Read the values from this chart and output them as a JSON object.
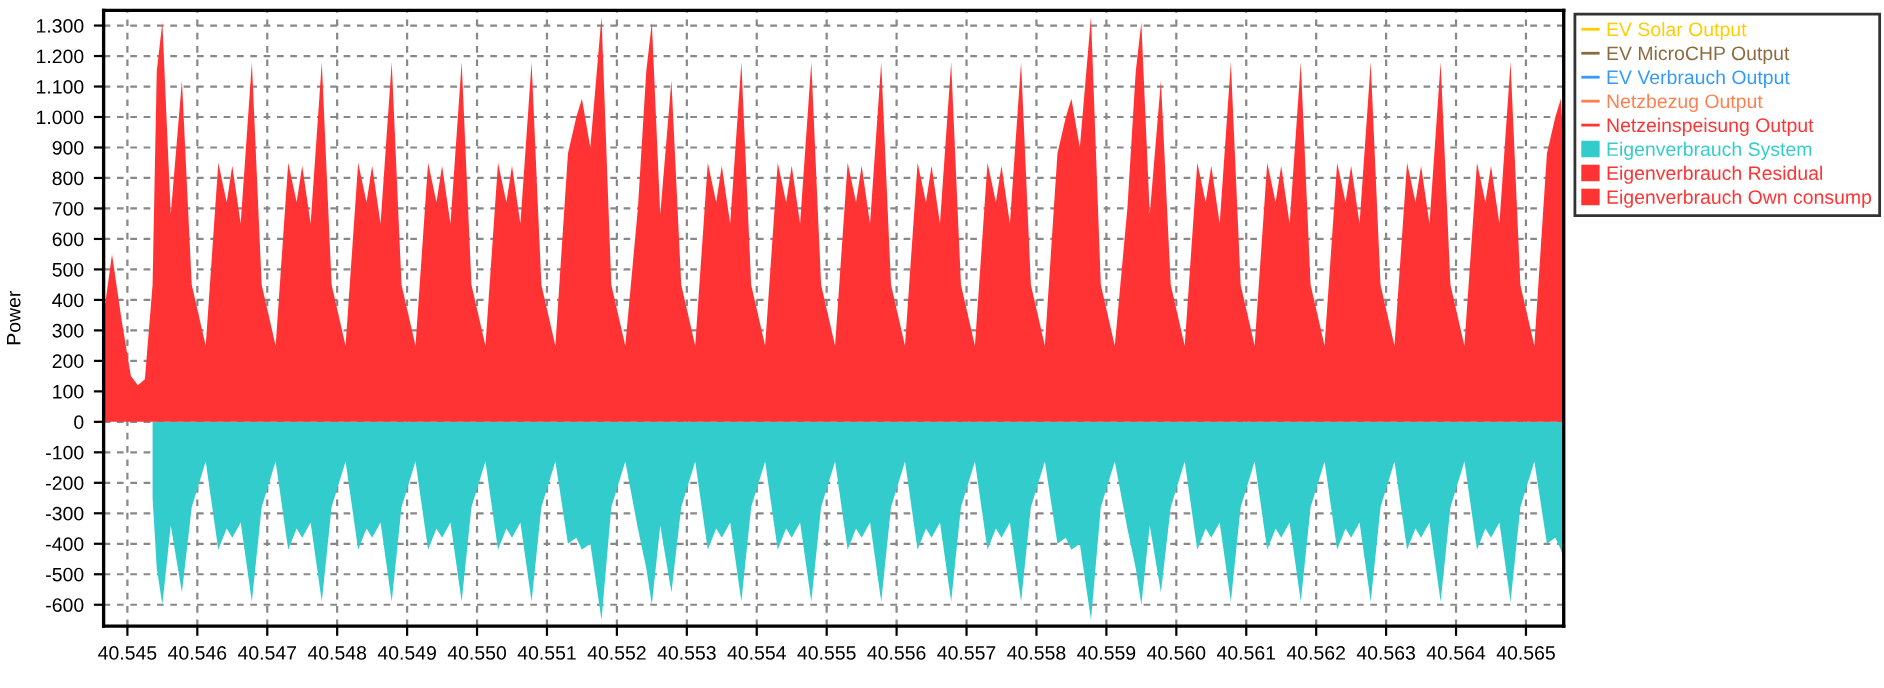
{
  "chart_data": {
    "type": "area",
    "ylabel": "Power",
    "x": [
      40544.66,
      40544.78,
      40544.92,
      40545.05,
      40545.15,
      40545.25,
      40545.36,
      40545.42,
      40545.5,
      40545.62,
      40545.78,
      40545.92,
      40546.12,
      40546.3,
      40546.42,
      40546.5,
      40546.62,
      40546.78,
      40546.92,
      40547.12,
      40547.3,
      40547.42,
      40547.5,
      40547.62,
      40547.78,
      40547.92,
      40548.12,
      40548.3,
      40548.42,
      40548.5,
      40548.62,
      40548.78,
      40548.92,
      40549.12,
      40549.3,
      40549.42,
      40549.5,
      40549.62,
      40549.78,
      40549.92,
      40550.12,
      40550.3,
      40550.42,
      40550.5,
      40550.62,
      40550.78,
      40550.92,
      40551.12,
      40551.3,
      40551.42,
      40551.5,
      40551.62,
      40551.78,
      40551.92,
      40552.12,
      40552.3,
      40552.42,
      40552.5,
      40552.62,
      40552.78,
      40552.92,
      40553.12,
      40553.3,
      40553.42,
      40553.5,
      40553.62,
      40553.78,
      40553.92,
      40554.12,
      40554.3,
      40554.42,
      40554.5,
      40554.62,
      40554.78,
      40554.92,
      40555.12,
      40555.3,
      40555.42,
      40555.5,
      40555.62,
      40555.78,
      40555.92,
      40556.12,
      40556.3,
      40556.42,
      40556.5,
      40556.62,
      40556.78,
      40556.92,
      40557.12,
      40557.3,
      40557.42,
      40557.5,
      40557.62,
      40557.78,
      40557.92,
      40558.12,
      40558.3,
      40558.42,
      40558.5,
      40558.62,
      40558.78,
      40558.92,
      40559.12,
      40559.3,
      40559.42,
      40559.5,
      40559.62,
      40559.78,
      40559.92,
      40560.12,
      40560.3,
      40560.42,
      40560.5,
      40560.62,
      40560.78,
      40560.92,
      40561.12,
      40561.3,
      40561.42,
      40561.5,
      40561.62,
      40561.78,
      40561.92,
      40562.12,
      40562.3,
      40562.42,
      40562.5,
      40562.62,
      40562.78,
      40562.92,
      40563.12,
      40563.3,
      40563.42,
      40563.5,
      40563.62,
      40563.78,
      40563.92,
      40564.12,
      40564.3,
      40564.42,
      40564.5,
      40564.62,
      40564.78,
      40564.92,
      40565.12,
      40565.3,
      40565.42,
      40565.5,
      40565.54
    ],
    "series": [
      {
        "name": "EV Solar Output",
        "type": "line",
        "color": "#ffcc00",
        "values": [
          null,
          null,
          null,
          null,
          null,
          null,
          null,
          null,
          null,
          null,
          null,
          null,
          null,
          null,
          null,
          null,
          null,
          null,
          null,
          null,
          null,
          null,
          null,
          null,
          null,
          null,
          null,
          null,
          null,
          null,
          null,
          null,
          null,
          null,
          null,
          null,
          null,
          null,
          null,
          null,
          null,
          null,
          null,
          null,
          null,
          null,
          null,
          null,
          null,
          null,
          null,
          null,
          null,
          null,
          null,
          null,
          null,
          null,
          null,
          null,
          null,
          null,
          null,
          null,
          null,
          null,
          null,
          null,
          null,
          null,
          null,
          null,
          null,
          null,
          null,
          null,
          null,
          null,
          null,
          null,
          null,
          null,
          null,
          null,
          null,
          null,
          null,
          null,
          null,
          null,
          null,
          null,
          null,
          null,
          null,
          null,
          null,
          null,
          null,
          null,
          null,
          null,
          null,
          null,
          null,
          null,
          null,
          null,
          null,
          null,
          null,
          null,
          null,
          null,
          null,
          null,
          null,
          null,
          null,
          null,
          null,
          null,
          null,
          null,
          null,
          null,
          null,
          null,
          null,
          null,
          null,
          null,
          null,
          null,
          null,
          null,
          null,
          null,
          null,
          null,
          null,
          null,
          null,
          null,
          null,
          null,
          null,
          null,
          null,
          null
        ]
      },
      {
        "name": "EV MicroCHP Output",
        "type": "line",
        "color": "#8b6b3d",
        "values": [
          null,
          null,
          null,
          null,
          null,
          null,
          null,
          null,
          null,
          null,
          null,
          null,
          null,
          null,
          null,
          null,
          null,
          null,
          null,
          null,
          null,
          null,
          null,
          null,
          null,
          null,
          null,
          null,
          null,
          null,
          null,
          null,
          null,
          null,
          null,
          null,
          null,
          null,
          null,
          null,
          null,
          null,
          null,
          null,
          null,
          null,
          null,
          null,
          null,
          null,
          null,
          null,
          null,
          null,
          null,
          null,
          null,
          null,
          null,
          null,
          null,
          null,
          null,
          null,
          null,
          null,
          null,
          null,
          null,
          null,
          null,
          null,
          null,
          null,
          null,
          null,
          null,
          null,
          null,
          null,
          null,
          null,
          null,
          null,
          null,
          null,
          null,
          null,
          null,
          null,
          null,
          null,
          null,
          null,
          null,
          null,
          null,
          null,
          null,
          null,
          null,
          null,
          null,
          null,
          null,
          null,
          null,
          null,
          null,
          null,
          null,
          null,
          null,
          null,
          null,
          null,
          null,
          null,
          null,
          null,
          null,
          null,
          null,
          null,
          null,
          null,
          null,
          null,
          null,
          null,
          null,
          null,
          null,
          null,
          null,
          null,
          null,
          null,
          null,
          null,
          null,
          null,
          null,
          null,
          null,
          null,
          null,
          null,
          null,
          null
        ]
      },
      {
        "name": "EV Verbrauch Output",
        "type": "line",
        "color": "#3399ff",
        "values": [
          null,
          null,
          null,
          null,
          null,
          null,
          null,
          null,
          null,
          null,
          null,
          null,
          null,
          null,
          null,
          null,
          null,
          null,
          null,
          null,
          null,
          null,
          null,
          null,
          null,
          null,
          null,
          null,
          null,
          null,
          null,
          null,
          null,
          null,
          null,
          null,
          null,
          null,
          null,
          null,
          null,
          null,
          null,
          null,
          null,
          null,
          null,
          null,
          null,
          null,
          null,
          null,
          null,
          null,
          null,
          null,
          null,
          null,
          null,
          null,
          null,
          null,
          null,
          null,
          null,
          null,
          null,
          null,
          null,
          null,
          null,
          null,
          null,
          null,
          null,
          null,
          null,
          null,
          null,
          null,
          null,
          null,
          null,
          null,
          null,
          null,
          null,
          null,
          null,
          null,
          null,
          null,
          null,
          null,
          null,
          null,
          null,
          null,
          null,
          null,
          null,
          null,
          null,
          null,
          null,
          null,
          null,
          null,
          null,
          null,
          null,
          null,
          null,
          null,
          null,
          null,
          null,
          null,
          null,
          null,
          null,
          null,
          null,
          null,
          null,
          null,
          null,
          null,
          null,
          null,
          null,
          null,
          null,
          null,
          null,
          null,
          null,
          null,
          null,
          null,
          null,
          null,
          null,
          null,
          null,
          null,
          null,
          null,
          null,
          null
        ]
      },
      {
        "name": "Netzbezug Output",
        "type": "line",
        "color": "#ff7f50",
        "values": [
          null,
          null,
          null,
          null,
          null,
          null,
          null,
          null,
          null,
          null,
          null,
          null,
          null,
          null,
          null,
          null,
          null,
          null,
          null,
          null,
          null,
          null,
          null,
          null,
          null,
          null,
          null,
          null,
          null,
          null,
          null,
          null,
          null,
          null,
          null,
          null,
          null,
          null,
          null,
          null,
          null,
          null,
          null,
          null,
          null,
          null,
          null,
          null,
          null,
          null,
          null,
          null,
          null,
          null,
          null,
          null,
          null,
          null,
          null,
          null,
          null,
          null,
          null,
          null,
          null,
          null,
          null,
          null,
          null,
          null,
          null,
          null,
          null,
          null,
          null,
          null,
          null,
          null,
          null,
          null,
          null,
          null,
          null,
          null,
          null,
          null,
          null,
          null,
          null,
          null,
          null,
          null,
          null,
          null,
          null,
          null,
          null,
          null,
          null,
          null,
          null,
          null,
          null,
          null,
          null,
          null,
          null,
          null,
          null,
          null,
          null,
          null,
          null,
          null,
          null,
          null,
          null,
          null,
          null,
          null,
          null,
          null,
          null,
          null,
          null,
          null,
          null,
          null,
          null,
          null,
          null,
          null,
          null,
          null,
          null,
          null,
          null,
          null,
          null,
          null,
          null,
          null,
          null,
          null,
          null,
          null,
          null,
          null,
          null,
          null
        ]
      },
      {
        "name": "Netzeinspeisung Output",
        "type": "line",
        "color": "#ff3333",
        "values": [
          null,
          null,
          null,
          null,
          null,
          null,
          null,
          null,
          null,
          null,
          null,
          null,
          null,
          null,
          null,
          null,
          null,
          null,
          null,
          null,
          null,
          null,
          null,
          null,
          null,
          null,
          null,
          null,
          null,
          null,
          null,
          null,
          null,
          null,
          null,
          null,
          null,
          null,
          null,
          null,
          null,
          null,
          null,
          null,
          null,
          null,
          null,
          null,
          null,
          null,
          null,
          null,
          null,
          null,
          null,
          null,
          null,
          null,
          null,
          null,
          null,
          null,
          null,
          null,
          null,
          null,
          null,
          null,
          null,
          null,
          null,
          null,
          null,
          null,
          null,
          null,
          null,
          null,
          null,
          null,
          null,
          null,
          null,
          null,
          null,
          null,
          null,
          null,
          null,
          null,
          null,
          null,
          null,
          null,
          null,
          null,
          null,
          null,
          null,
          null,
          null,
          null,
          null,
          null,
          null,
          null,
          null,
          null,
          null,
          null,
          null,
          null,
          null,
          null,
          null,
          null,
          null,
          null,
          null,
          null,
          null,
          null,
          null,
          null,
          null,
          null,
          null,
          null,
          null,
          null,
          null,
          null,
          null,
          null,
          null,
          null,
          null,
          null,
          null,
          null,
          null,
          null,
          null,
          null,
          null,
          null,
          null,
          null,
          null,
          null
        ]
      },
      {
        "name": "Eigenverbrauch System",
        "color": "#33cccc",
        "values": [
          null,
          null,
          null,
          null,
          null,
          null,
          -250,
          -480,
          -600,
          -340,
          -560,
          -280,
          -130,
          -420,
          -350,
          -380,
          -330,
          -590,
          -280,
          -130,
          -420,
          -350,
          -380,
          -330,
          -590,
          -280,
          -130,
          -420,
          -350,
          -380,
          -330,
          -590,
          -280,
          -130,
          -420,
          -350,
          -380,
          -330,
          -590,
          -280,
          -130,
          -420,
          -350,
          -380,
          -330,
          -590,
          -280,
          -130,
          -400,
          -380,
          -420,
          -400,
          -650,
          -280,
          -130,
          -350,
          -480,
          -600,
          -340,
          -560,
          -280,
          -130,
          -420,
          -350,
          -380,
          -330,
          -590,
          -280,
          -130,
          -420,
          -350,
          -380,
          -330,
          -590,
          -280,
          -130,
          -420,
          -350,
          -380,
          -330,
          -590,
          -280,
          -130,
          -420,
          -350,
          -380,
          -330,
          -590,
          -280,
          -130,
          -420,
          -350,
          -380,
          -330,
          -590,
          -280,
          -130,
          -400,
          -380,
          -420,
          -400,
          -650,
          -280,
          -130,
          -350,
          -480,
          -600,
          -340,
          -560,
          -280,
          -130,
          -420,
          -350,
          -380,
          -330,
          -590,
          -280,
          -130,
          -420,
          -350,
          -380,
          -330,
          -590,
          -280,
          -130,
          -420,
          -350,
          -380,
          -330,
          -590,
          -280,
          -130,
          -420,
          -350,
          -380,
          -330,
          -590,
          -280,
          -130,
          -420,
          -350,
          -380,
          -330,
          -590,
          -280,
          -130,
          -400,
          -380,
          -420,
          -450
        ]
      },
      {
        "name": "Eigenverbrauch Residual",
        "color": "#ff3333",
        "values": [
          null,
          null,
          null,
          null,
          null,
          null,
          null,
          null,
          null,
          null,
          null,
          null,
          null,
          null,
          null,
          null,
          null,
          null,
          null,
          null,
          null,
          null,
          null,
          null,
          null,
          null,
          null,
          null,
          null,
          null,
          null,
          null,
          null,
          null,
          null,
          null,
          null,
          null,
          null,
          null,
          null,
          null,
          null,
          null,
          null,
          null,
          null,
          null,
          null,
          null,
          null,
          null,
          null,
          null,
          null,
          null,
          null,
          null,
          null,
          null,
          null,
          null,
          null,
          null,
          null,
          null,
          null,
          null,
          null,
          null,
          null,
          null,
          null,
          null,
          null,
          null,
          null,
          null,
          null,
          null,
          null,
          null,
          null,
          null,
          null,
          null,
          null,
          null,
          null,
          null,
          null,
          null,
          null,
          null,
          null,
          null,
          null,
          null,
          null,
          null,
          null,
          null,
          null,
          null,
          null,
          null,
          null,
          null,
          null,
          null,
          null,
          null,
          null,
          null,
          null,
          null,
          null,
          null,
          null,
          null,
          null,
          null,
          null,
          null,
          null,
          null,
          null,
          null,
          null,
          null,
          null,
          null,
          null,
          null,
          null,
          null,
          null,
          null,
          null,
          null,
          null,
          null,
          null,
          null,
          null,
          null,
          null,
          null,
          null,
          null
        ]
      },
      {
        "name": "Eigenverbrauch Own consump",
        "color": "#ff3333",
        "values": [
          350,
          550,
          330,
          150,
          120,
          140,
          450,
          1150,
          1310,
          680,
          1120,
          450,
          250,
          850,
          720,
          840,
          650,
          1180,
          450,
          250,
          850,
          720,
          840,
          650,
          1180,
          450,
          250,
          850,
          720,
          840,
          650,
          1180,
          450,
          250,
          850,
          720,
          840,
          650,
          1180,
          450,
          250,
          850,
          720,
          840,
          650,
          1180,
          450,
          250,
          880,
          1000,
          1060,
          900,
          1330,
          450,
          250,
          700,
          1150,
          1310,
          680,
          1120,
          450,
          250,
          850,
          720,
          840,
          650,
          1180,
          450,
          250,
          850,
          720,
          840,
          650,
          1180,
          450,
          250,
          850,
          720,
          840,
          650,
          1180,
          450,
          250,
          850,
          720,
          840,
          650,
          1180,
          450,
          250,
          850,
          720,
          840,
          650,
          1180,
          450,
          250,
          880,
          1000,
          1060,
          900,
          1330,
          450,
          250,
          700,
          1150,
          1310,
          680,
          1120,
          450,
          250,
          850,
          720,
          840,
          650,
          1180,
          450,
          250,
          850,
          720,
          840,
          650,
          1180,
          450,
          250,
          850,
          720,
          840,
          650,
          1180,
          450,
          250,
          850,
          720,
          840,
          650,
          1180,
          450,
          250,
          850,
          720,
          840,
          650,
          1180,
          450,
          250,
          880,
          1000,
          1060,
          900
        ]
      }
    ],
    "xlim": [
      40544.66,
      40565.54
    ],
    "ylim": [
      -670,
      1350
    ],
    "xticks": [
      {
        "value": 40545,
        "label": "40.545"
      },
      {
        "value": 40546,
        "label": "40.546"
      },
      {
        "value": 40547,
        "label": "40.547"
      },
      {
        "value": 40548,
        "label": "40.548"
      },
      {
        "value": 40549,
        "label": "40.549"
      },
      {
        "value": 40550,
        "label": "40.550"
      },
      {
        "value": 40551,
        "label": "40.551"
      },
      {
        "value": 40552,
        "label": "40.552"
      },
      {
        "value": 40553,
        "label": "40.553"
      },
      {
        "value": 40554,
        "label": "40.554"
      },
      {
        "value": 40555,
        "label": "40.555"
      },
      {
        "value": 40556,
        "label": "40.556"
      },
      {
        "value": 40557,
        "label": "40.557"
      },
      {
        "value": 40558,
        "label": "40.558"
      },
      {
        "value": 40559,
        "label": "40.559"
      },
      {
        "value": 40560,
        "label": "40.560"
      },
      {
        "value": 40561,
        "label": "40.561"
      },
      {
        "value": 40562,
        "label": "40.562"
      },
      {
        "value": 40563,
        "label": "40.563"
      },
      {
        "value": 40564,
        "label": "40.564"
      },
      {
        "value": 40565,
        "label": "40.565"
      }
    ],
    "yticks": [
      -600,
      -500,
      -400,
      -300,
      -200,
      -100,
      0,
      100,
      200,
      300,
      400,
      500,
      600,
      700,
      800,
      900,
      {
        "value": 1000,
        "label": "1.000"
      },
      {
        "value": 1100,
        "label": "1.100"
      },
      {
        "value": 1200,
        "label": "1.200"
      },
      {
        "value": 1300,
        "label": "1.300"
      }
    ],
    "grid": true,
    "legend": "right"
  }
}
